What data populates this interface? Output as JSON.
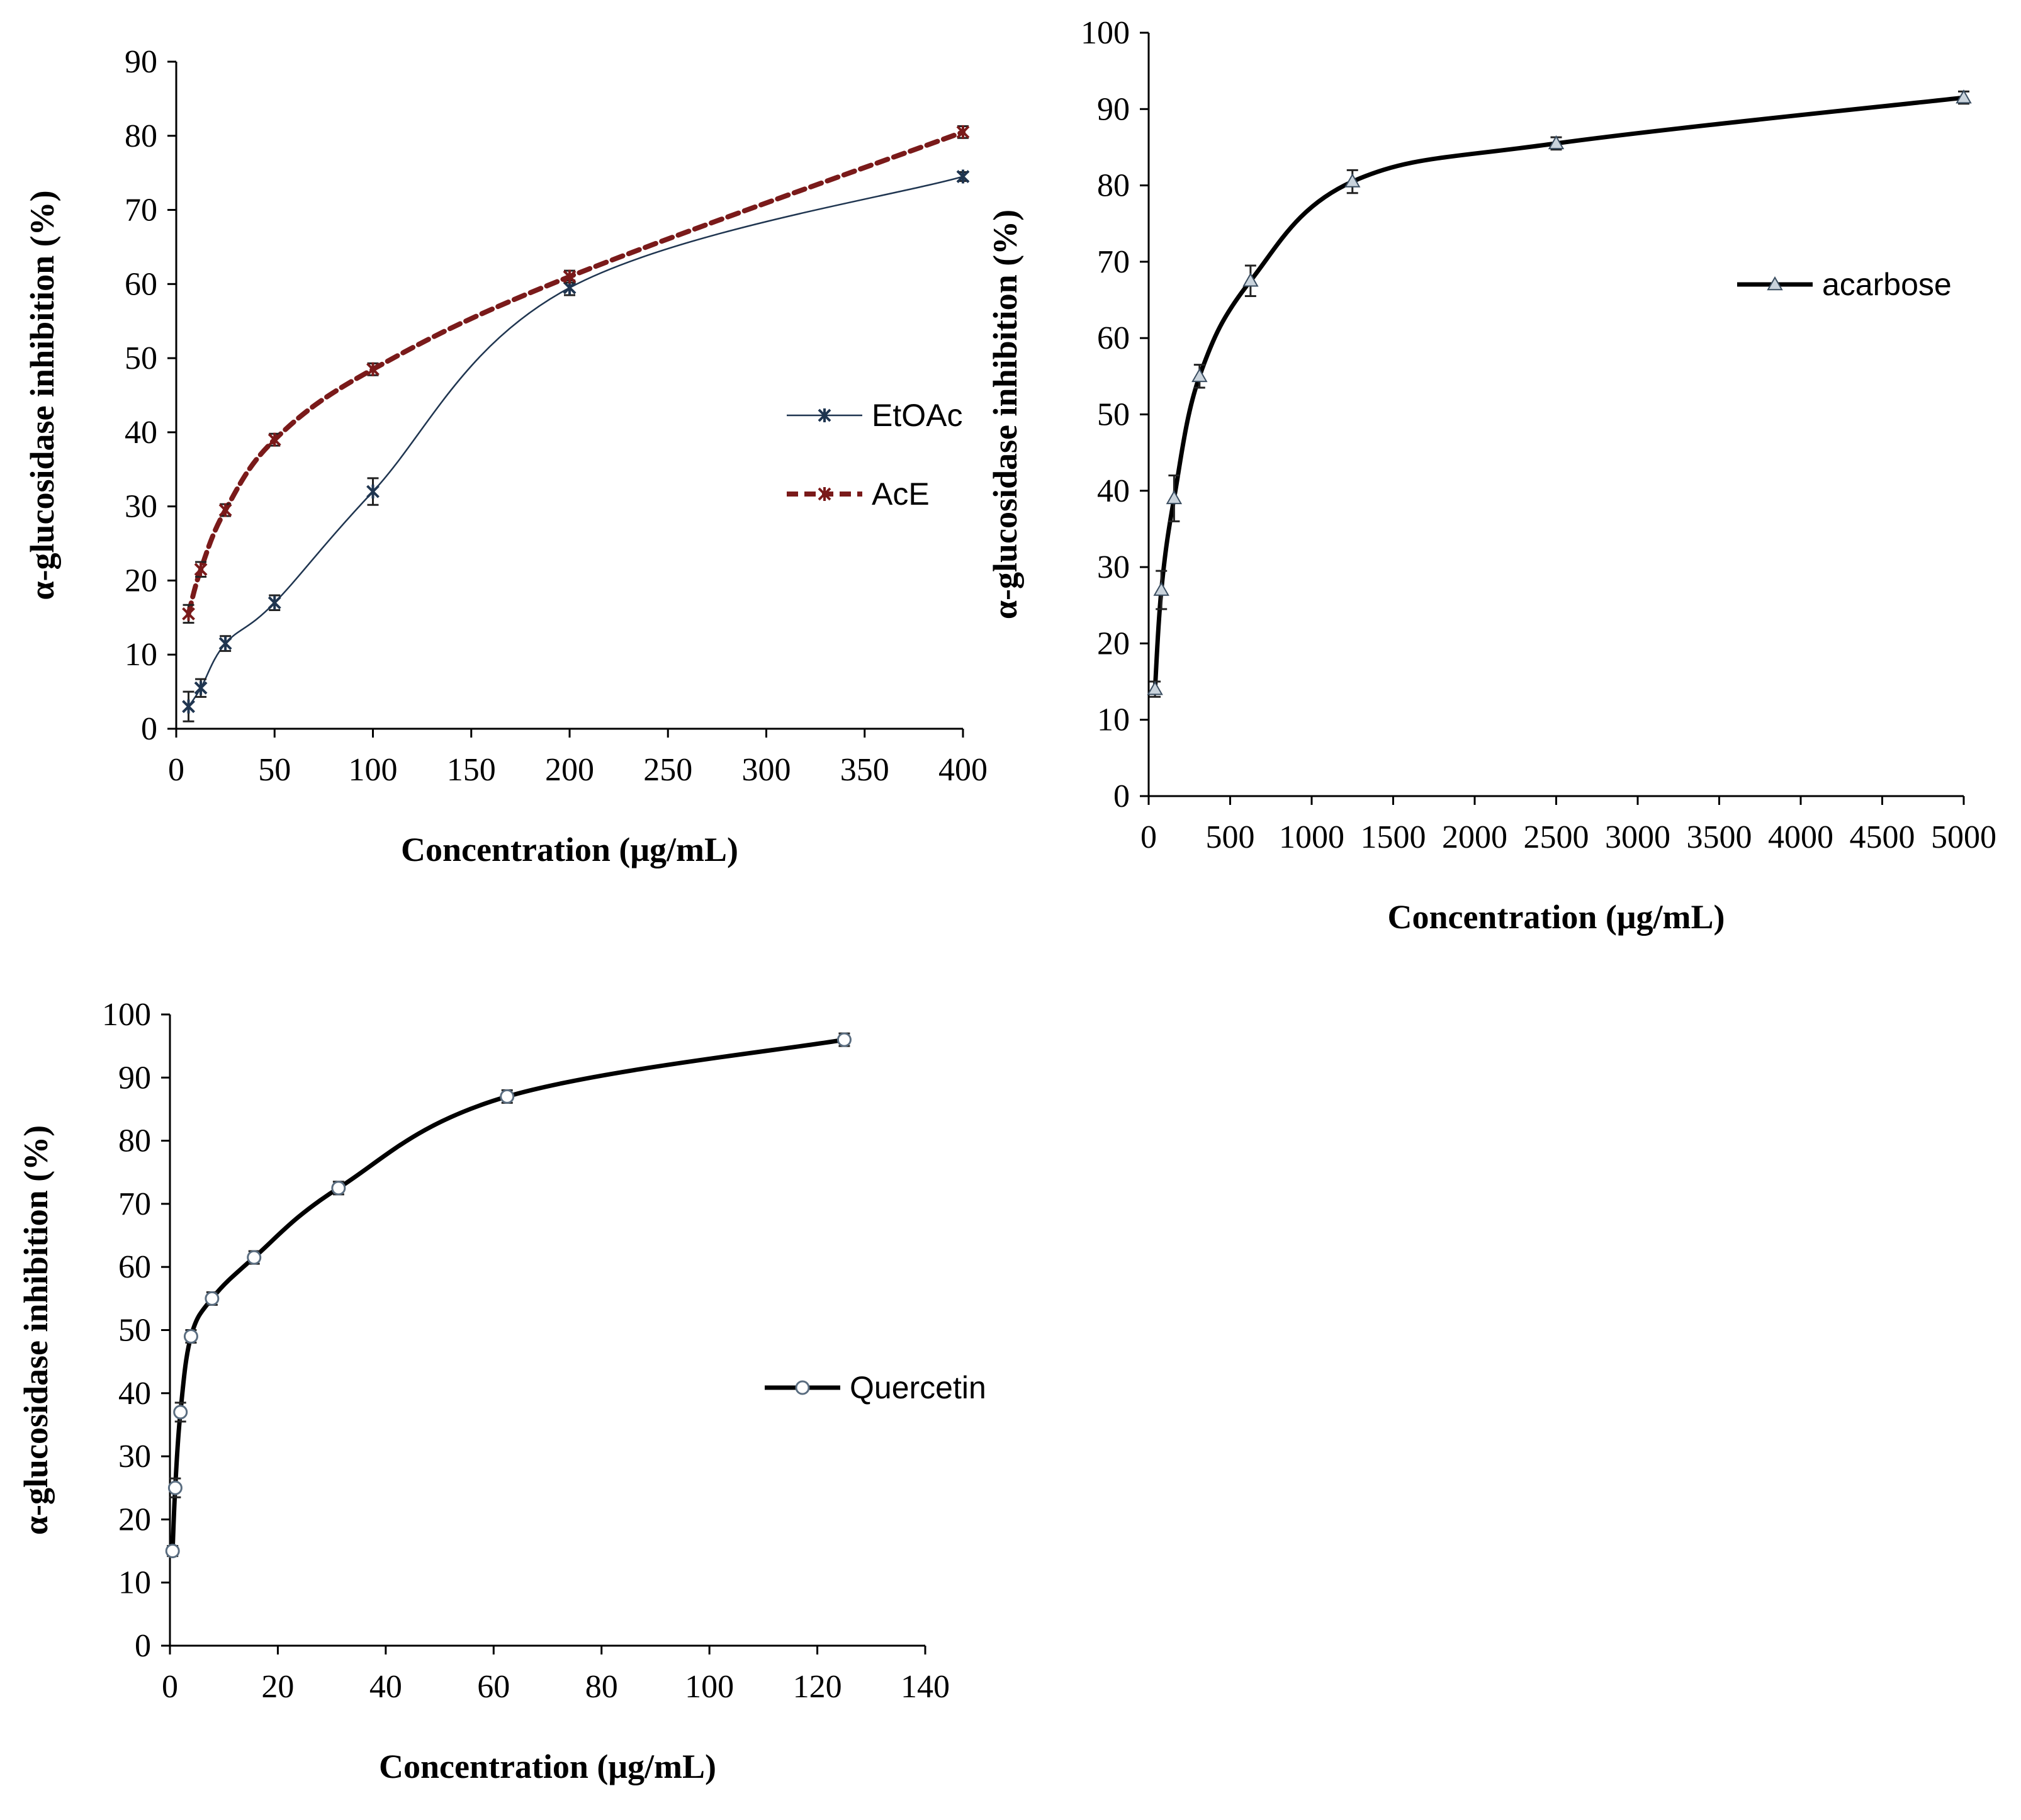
{
  "chart_data": [
    {
      "id": "panel-a",
      "type": "line",
      "title": "",
      "xlabel": "Concentration  (μg/mL)",
      "ylabel": "α-glucosidase inhibition  (%)",
      "xlim": [
        0,
        400
      ],
      "ylim": [
        0,
        90
      ],
      "xticks": [
        0,
        50,
        100,
        150,
        200,
        250,
        300,
        350,
        400
      ],
      "yticks": [
        0,
        10,
        20,
        30,
        40,
        50,
        60,
        70,
        80,
        90
      ],
      "grid": false,
      "legend_position": "right-middle",
      "series": [
        {
          "name": "EtOAc",
          "x": [
            6.25,
            12.5,
            25,
            50,
            100,
            200,
            400
          ],
          "y": [
            3,
            5.5,
            11.5,
            17,
            32,
            59.5,
            74.5
          ],
          "err": [
            2,
            1.2,
            1,
            1,
            1.8,
            1,
            0.6
          ],
          "color": "#1f3550",
          "style": "solid",
          "marker": "star"
        },
        {
          "name": "AcE",
          "x": [
            6.25,
            12.5,
            25,
            50,
            100,
            200,
            400
          ],
          "y": [
            15.5,
            21.5,
            29.5,
            39,
            48.5,
            61,
            80.5
          ],
          "err": [
            1.2,
            1,
            0.8,
            0.8,
            0.8,
            0.8,
            0.8
          ],
          "color": "#7a1a1a",
          "style": "dashed",
          "marker": "star"
        }
      ]
    },
    {
      "id": "panel-b",
      "type": "line",
      "title": "",
      "xlabel": "Concentration  (μg/mL)",
      "ylabel": "α-glucosidase  inhibition  (%)",
      "xlim": [
        0,
        5000
      ],
      "ylim": [
        0,
        100
      ],
      "xticks": [
        0,
        500,
        1000,
        1500,
        2000,
        2500,
        3000,
        3500,
        4000,
        4500,
        5000
      ],
      "yticks": [
        0,
        10,
        20,
        30,
        40,
        50,
        60,
        70,
        80,
        90,
        100
      ],
      "grid": false,
      "legend_position": "top-right",
      "series": [
        {
          "name": "acarbose",
          "x": [
            39,
            78,
            156,
            312,
            625,
            1250,
            2500,
            5000
          ],
          "y": [
            14,
            27,
            39,
            55,
            67.5,
            80.5,
            85.5,
            91.5
          ],
          "err": [
            1,
            2.5,
            3,
            1.5,
            2,
            1.5,
            0.8,
            0.8
          ],
          "color": "#000000",
          "style": "solid",
          "marker": "triangle"
        }
      ]
    },
    {
      "id": "panel-c",
      "type": "line",
      "title": "",
      "xlabel": "Concentration  (μg/mL)",
      "ylabel": "α-glucosidase inhibition  (%)",
      "xlim": [
        0,
        140
      ],
      "ylim": [
        0,
        100
      ],
      "xticks": [
        0,
        20,
        40,
        60,
        80,
        100,
        120,
        140
      ],
      "yticks": [
        0,
        10,
        20,
        30,
        40,
        50,
        60,
        70,
        80,
        90,
        100
      ],
      "grid": false,
      "legend_position": "right-middle",
      "series": [
        {
          "name": "Quercetin",
          "x": [
            0.49,
            0.98,
            1.95,
            3.9,
            7.8,
            15.6,
            31.25,
            62.5,
            125
          ],
          "y": [
            15,
            25,
            37,
            49,
            55,
            61.5,
            72.5,
            87,
            96
          ],
          "err": [
            0.8,
            1.5,
            1.5,
            1,
            1,
            1,
            1,
            1,
            1
          ],
          "color": "#000000",
          "style": "solid",
          "marker": "circle"
        }
      ]
    }
  ]
}
